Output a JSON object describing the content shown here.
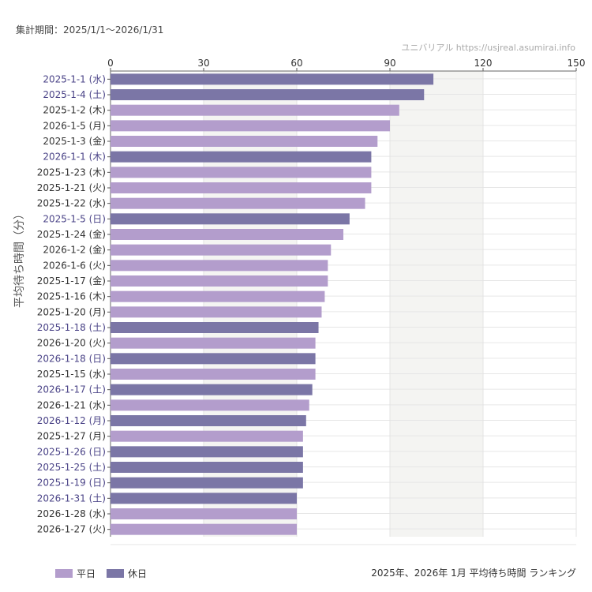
{
  "header": {
    "period": "集計期間：2025/1/1〜2026/1/31",
    "credit": "ユニバリアル  https://usjreal.asumirai.info"
  },
  "footer": {
    "caption": "2025年、2026年 1月 平均待ち時間 ランキング"
  },
  "colors": {
    "weekday": "#b39dcc",
    "holiday": "#7b76a6",
    "holiday_label": "#4a4387",
    "weekday_label": "#333333",
    "band": "#f4f4f2"
  },
  "chart_data": {
    "type": "bar",
    "orientation": "horizontal",
    "ylabel": "平均待ち時間（分）",
    "xlim": [
      0,
      150
    ],
    "xticks": [
      0,
      30,
      60,
      90,
      120,
      150
    ],
    "grid": true,
    "legend_placement": "bottom-left",
    "legend": [
      {
        "key": "weekday",
        "label": "平日"
      },
      {
        "key": "holiday",
        "label": "休日"
      }
    ],
    "categories": [
      "2025-1-1 (水)",
      "2025-1-4 (土)",
      "2025-1-2 (木)",
      "2026-1-5 (月)",
      "2025-1-3 (金)",
      "2026-1-1 (木)",
      "2025-1-23 (木)",
      "2025-1-21 (火)",
      "2025-1-22 (水)",
      "2025-1-5 (日)",
      "2025-1-24 (金)",
      "2026-1-2 (金)",
      "2026-1-6 (火)",
      "2025-1-17 (金)",
      "2025-1-16 (木)",
      "2025-1-20 (月)",
      "2025-1-18 (土)",
      "2026-1-20 (火)",
      "2026-1-18 (日)",
      "2025-1-15 (水)",
      "2026-1-17 (土)",
      "2026-1-21 (水)",
      "2026-1-12 (月)",
      "2025-1-27 (月)",
      "2025-1-26 (日)",
      "2025-1-25 (土)",
      "2025-1-19 (日)",
      "2026-1-31 (土)",
      "2026-1-28 (水)",
      "2026-1-27 (火)"
    ],
    "values": [
      104,
      101,
      93,
      90,
      86,
      84,
      84,
      84,
      82,
      77,
      75,
      71,
      70,
      70,
      69,
      68,
      67,
      66,
      66,
      66,
      65,
      64,
      63,
      62,
      62,
      62,
      62,
      60,
      60,
      60
    ],
    "day_type": [
      "holiday",
      "holiday",
      "weekday",
      "weekday",
      "weekday",
      "holiday",
      "weekday",
      "weekday",
      "weekday",
      "holiday",
      "weekday",
      "weekday",
      "weekday",
      "weekday",
      "weekday",
      "weekday",
      "holiday",
      "weekday",
      "holiday",
      "weekday",
      "holiday",
      "weekday",
      "holiday",
      "weekday",
      "holiday",
      "holiday",
      "holiday",
      "holiday",
      "weekday",
      "weekday"
    ]
  }
}
